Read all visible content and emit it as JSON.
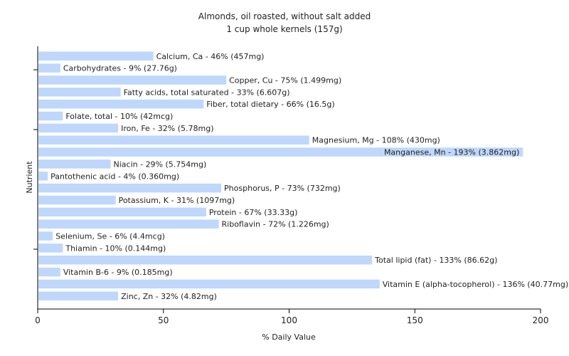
{
  "colors": {
    "bar": "#bfd7fb",
    "axis": "#000000"
  },
  "chart_data": {
    "type": "bar",
    "orientation": "horizontal",
    "title": "Almonds, oil roasted, without salt added",
    "subtitle": "1 cup whole kernels (157g)",
    "xlabel": "% Daily Value",
    "ylabel": "Nutrient",
    "xlim": [
      0,
      200
    ],
    "xticks": [
      0,
      50,
      100,
      150,
      200
    ],
    "grid": false,
    "categories": [
      "Calcium, Ca",
      "Carbohydrates",
      "Copper, Cu",
      "Fatty acids, total saturated",
      "Fiber, total dietary",
      "Folate, total",
      "Iron, Fe",
      "Magnesium, Mg",
      "Manganese, Mn",
      "Niacin",
      "Pantothenic acid",
      "Phosphorus, P",
      "Potassium, K",
      "Protein",
      "Riboflavin",
      "Selenium, Se",
      "Thiamin",
      "Total lipid (fat)",
      "Vitamin B-6",
      "Vitamin E (alpha-tocopherol)",
      "Zinc, Zn"
    ],
    "values": [
      46,
      9,
      75,
      33,
      66,
      10,
      32,
      108,
      193,
      29,
      4,
      73,
      31,
      67,
      72,
      6,
      10,
      133,
      9,
      136,
      32
    ],
    "labels": [
      "Calcium, Ca - 46% (457mg)",
      "Carbohydrates - 9% (27.76g)",
      "Copper, Cu - 75% (1.499mg)",
      "Fatty acids, total saturated - 33% (6.607g)",
      "Fiber, total dietary - 66% (16.5g)",
      "Folate, total - 10% (42mcg)",
      "Iron, Fe - 32% (5.78mg)",
      "Magnesium, Mg - 108% (430mg)",
      "Manganese, Mn - 193% (3.862mg)",
      "Niacin - 29% (5.754mg)",
      "Pantothenic acid - 4% (0.360mg)",
      "Phosphorus, P - 73% (732mg)",
      "Potassium, K - 31% (1097mg)",
      "Protein - 67% (33.33g)",
      "Riboflavin - 72% (1.226mg)",
      "Selenium, Se - 6% (4.4mcg)",
      "Thiamin - 10% (0.144mg)",
      "Total lipid (fat) - 133% (86.62g)",
      "Vitamin B-6 - 9% (0.185mg)",
      "Vitamin E (alpha-tocopherol) - 136% (40.77mg)",
      "Zinc, Zn - 32% (4.82mg)"
    ]
  }
}
